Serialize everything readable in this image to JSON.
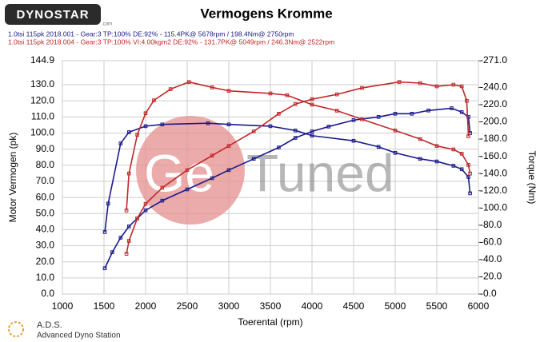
{
  "branding": {
    "logo": "DYNOSTAR",
    "logo_suffix": ".com",
    "watermark_left": "Ge",
    "watermark_right": "Tuned",
    "footer_title": "A.D.S.",
    "footer_subtitle": "Advanced Dyno Station"
  },
  "chart_data": {
    "type": "line",
    "title": "Vermogens Kromme",
    "legend": [
      {
        "label": "1.0tsi 115pk 2018.001 - Gear:3 TP:100% DE:92%   - 115.4PK@ 5678rpm / 198.4Nm@ 2750rpm",
        "color": "#1a1a8c"
      },
      {
        "label": "1.0tsi 115pk 2018.004 - Gear:3 TP:100% VI:4.00kgm2 DE:92%   - 131.7PK@ 5049rpm / 246.3Nm@ 2522rpm",
        "color": "#c0282a"
      }
    ],
    "x_label": "Toerental (rpm)",
    "y_label": "Motor Vermogen (pk)",
    "y2_label": "Torque (Nm)",
    "xlim": [
      1000,
      6000
    ],
    "xticks": [
      1000,
      1500,
      2000,
      2500,
      3000,
      3500,
      4000,
      4500,
      5000,
      5500,
      6000
    ],
    "ylim": [
      0,
      144.9
    ],
    "yticks": [
      {
        "value": 0,
        "label": "0.0"
      },
      {
        "value": 10,
        "label": "10.0"
      },
      {
        "value": 20,
        "label": "20.0"
      },
      {
        "value": 30,
        "label": "30.0"
      },
      {
        "value": 40,
        "label": "40.0"
      },
      {
        "value": 50,
        "label": "50.0"
      },
      {
        "value": 60,
        "label": "60.0"
      },
      {
        "value": 70,
        "label": "70.0"
      },
      {
        "value": 80,
        "label": "80.0"
      },
      {
        "value": 90,
        "label": "90.0"
      },
      {
        "value": 100,
        "label": "100.0"
      },
      {
        "value": 110,
        "label": "110.0"
      },
      {
        "value": 120,
        "label": "120.0"
      },
      {
        "value": 130,
        "label": "130.0"
      },
      {
        "value": 144.9,
        "label": "144.9"
      }
    ],
    "y2lim": [
      0,
      271
    ],
    "y2ticks": [
      {
        "value": 0,
        "label": "-0.0"
      },
      {
        "value": 20,
        "label": "-20.0"
      },
      {
        "value": 40,
        "label": "-40.0"
      },
      {
        "value": 60,
        "label": "-60.0"
      },
      {
        "value": 80,
        "label": "-80.0"
      },
      {
        "value": 100,
        "label": "-100.0"
      },
      {
        "value": 120,
        "label": "-120.0"
      },
      {
        "value": 140,
        "label": "-140.0"
      },
      {
        "value": 160,
        "label": "-160.0"
      },
      {
        "value": 180,
        "label": "-180.0"
      },
      {
        "value": 200,
        "label": "-200.0"
      },
      {
        "value": 220,
        "label": "-220.0"
      },
      {
        "value": 240,
        "label": "-240.0"
      },
      {
        "value": 271,
        "label": "-271.0"
      }
    ],
    "grid": true,
    "series": [
      {
        "color": "#1a1a8c",
        "axis": "y",
        "x": [
          1510,
          1600,
          1700,
          1800,
          1900,
          2000,
          2200,
          2500,
          2800,
          3000,
          3300,
          3600,
          3800,
          4000,
          4200,
          4500,
          4800,
          5000,
          5200,
          5400,
          5678,
          5800,
          5880,
          5900
        ],
        "values": [
          16,
          26,
          35,
          42,
          47,
          52,
          58,
          65,
          72,
          77,
          84,
          91,
          97,
          101,
          104,
          108,
          110,
          112,
          112,
          114,
          115.4,
          113,
          110,
          100
        ]
      },
      {
        "color": "#1a1a8c",
        "axis": "y2",
        "x": [
          1510,
          1550,
          1700,
          1800,
          2000,
          2200,
          2750,
          3000,
          3500,
          3800,
          4000,
          4500,
          4800,
          5000,
          5300,
          5500,
          5700,
          5800,
          5880,
          5900
        ],
        "values": [
          72,
          105,
          175,
          188,
          195,
          197,
          198.4,
          197,
          195,
          190,
          184,
          178,
          171,
          164,
          157,
          154,
          149,
          145,
          136,
          117
        ]
      },
      {
        "color": "#c0282a",
        "axis": "y",
        "x": [
          1770,
          1800,
          1900,
          2000,
          2200,
          2500,
          2800,
          3000,
          3300,
          3600,
          3800,
          4000,
          4300,
          4600,
          5049,
          5300,
          5500,
          5700,
          5800,
          5860,
          5880
        ],
        "values": [
          25,
          33,
          47,
          56,
          66,
          77,
          86,
          92,
          101,
          112,
          118,
          121,
          124,
          128,
          131.7,
          131,
          129,
          130,
          129,
          120,
          98
        ]
      },
      {
        "color": "#c0282a",
        "axis": "y2",
        "x": [
          1770,
          1800,
          1900,
          2000,
          2100,
          2300,
          2522,
          2800,
          3000,
          3500,
          3700,
          4000,
          4300,
          4600,
          5000,
          5300,
          5500,
          5700,
          5800,
          5880,
          5900
        ],
        "values": [
          97,
          140,
          185,
          210,
          225,
          238,
          246.3,
          240,
          236,
          233,
          231,
          220,
          213,
          203,
          190,
          180,
          172,
          168,
          163,
          150,
          140
        ]
      }
    ]
  }
}
